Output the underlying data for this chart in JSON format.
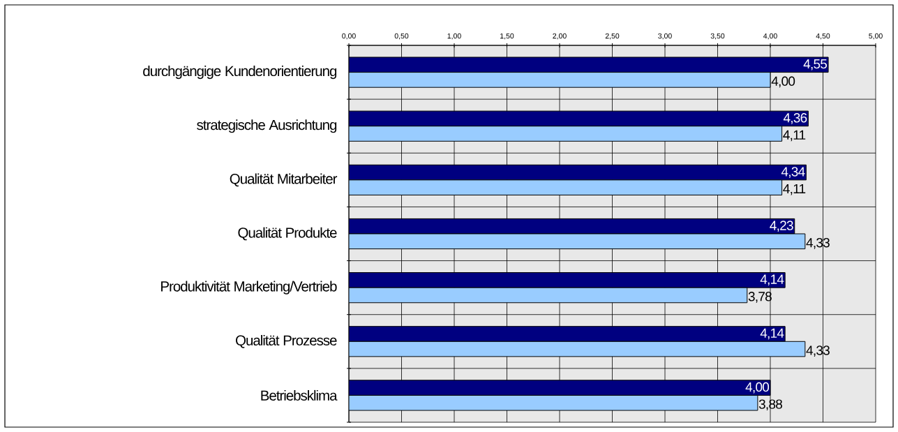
{
  "chart_data": {
    "type": "bar",
    "orientation": "horizontal",
    "categories": [
      "durchgängige Kundenorientierung",
      "strategische Ausrichtung",
      "Qualität Mitarbeiter",
      "Qualität Produkte",
      "Produktivität Marketing/Vertrieb",
      "Qualität Prozesse",
      "Betriebsklima"
    ],
    "series": [
      {
        "color": "#000080",
        "values": [
          4.55,
          4.36,
          4.34,
          4.23,
          4.14,
          4.14,
          4.0
        ],
        "value_labels": [
          "4,55",
          "4,36",
          "4,34",
          "4,23",
          "4,14",
          "4,14",
          "4,00"
        ]
      },
      {
        "color": "#99ccff",
        "values": [
          4.0,
          4.11,
          4.11,
          4.33,
          3.78,
          4.33,
          3.88
        ],
        "value_labels": [
          "4,00",
          "4,11",
          "4,11",
          "4,33",
          "3,78",
          "4,33",
          "3,88"
        ]
      }
    ],
    "xlim": [
      0,
      5
    ],
    "xticks": [
      {
        "value": 0,
        "label": "0,00"
      },
      {
        "value": 0.5,
        "label": "0,50"
      },
      {
        "value": 1,
        "label": "1,00"
      },
      {
        "value": 1.5,
        "label": "1,50"
      },
      {
        "value": 2,
        "label": "2,00"
      },
      {
        "value": 2.5,
        "label": "2,50"
      },
      {
        "value": 3,
        "label": "3,00"
      },
      {
        "value": 3.5,
        "label": "3,50"
      },
      {
        "value": 4,
        "label": "4,00"
      },
      {
        "value": 4.5,
        "label": "4,50"
      },
      {
        "value": 5,
        "label": "5,00"
      }
    ],
    "grid": true
  }
}
